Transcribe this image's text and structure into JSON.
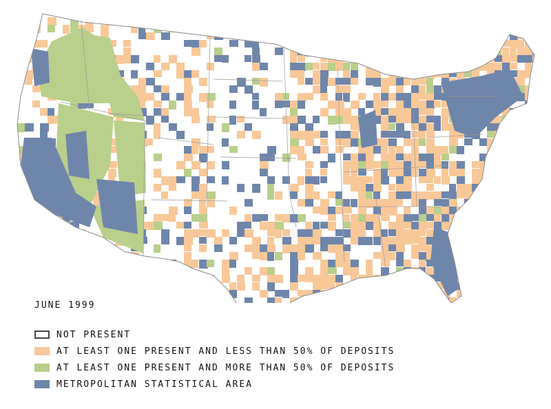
{
  "map": {
    "subject": "US counties by bank presence",
    "colors": {
      "not_present": "#ffffff",
      "minority": "#f9c899",
      "majority": "#b9cf8c",
      "msa": "#6f86ab",
      "border": "#8a8a8a"
    }
  },
  "date_label": "JUNE 1999",
  "legend": [
    {
      "key": "not_present",
      "label": "NOT PRESENT",
      "color": "#ffffff"
    },
    {
      "key": "minority",
      "label": "AT LEAST ONE PRESENT AND LESS THAN 50% OF DEPOSITS",
      "color": "#f9c899"
    },
    {
      "key": "majority",
      "label": "AT LEAST ONE PRESENT AND MORE THAN 50% OF DEPOSITS",
      "color": "#b9cf8c"
    },
    {
      "key": "msa",
      "label": "METROPOLITAN STATISTICAL AREA",
      "color": "#6f86ab"
    }
  ]
}
